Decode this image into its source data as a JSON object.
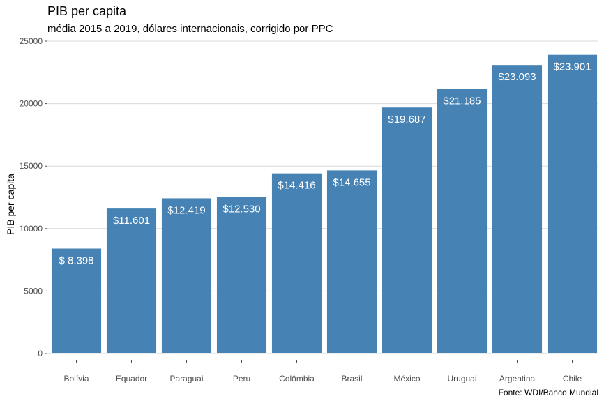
{
  "chart_data": {
    "type": "bar",
    "title": "PIB per capita",
    "subtitle": "média 2015 a 2019, dólares internacionais, corrigido por PPC",
    "ylabel": "PIB per capita",
    "xlabel": "",
    "caption": "Fonte: WDI/Banco Mundial",
    "ylim": [
      0,
      25000
    ],
    "yticks": [
      0,
      5000,
      10000,
      15000,
      20000,
      25000
    ],
    "ytick_labels": [
      "0",
      "5000",
      "10000",
      "15000",
      "20000",
      "25000"
    ],
    "categories": [
      "Bolívia",
      "Equador",
      "Paraguai",
      "Peru",
      "Colômbia",
      "Brasil",
      "México",
      "Uruguai",
      "Argentina",
      "Chile"
    ],
    "values": [
      8398,
      11601,
      12419,
      12530,
      14416,
      14655,
      19687,
      21185,
      23093,
      23901
    ],
    "data_labels": [
      "$ 8.398",
      "$11.601",
      "$12.419",
      "$12.530",
      "$14.416",
      "$14.655",
      "$19.687",
      "$21.185",
      "$23.093",
      "$23.901"
    ],
    "bar_color": "#4682B4",
    "grid": "horizontal",
    "legend": "none"
  }
}
